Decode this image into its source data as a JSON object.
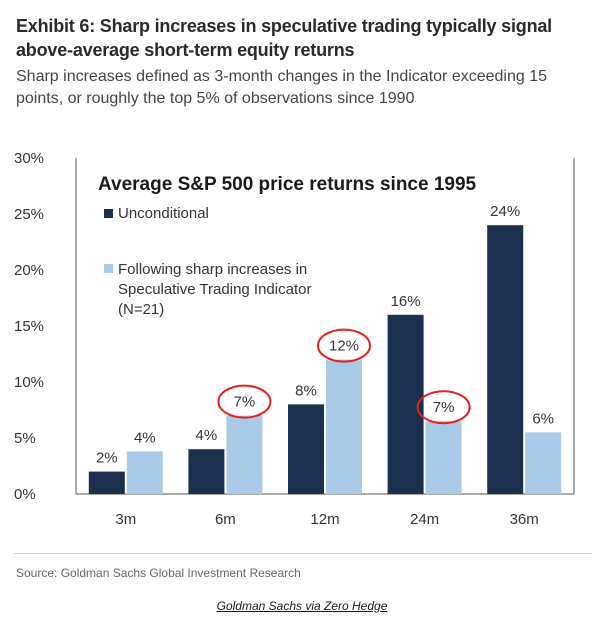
{
  "header": {
    "title": "Exhibit 6: Sharp increases in speculative trading typically signal above-average short-term equity returns",
    "subtitle": "Sharp increases defined as 3-month changes in the Indicator exceeding 15 points, or roughly the top 5% of observations since 1990"
  },
  "chart_data": {
    "type": "bar",
    "title": "Average S&P 500 price returns since 1995",
    "categories": [
      "3m",
      "6m",
      "12m",
      "24m",
      "36m"
    ],
    "series": [
      {
        "name": "Unconditional",
        "values": [
          2,
          4,
          8,
          16,
          24
        ],
        "labels": [
          "2%",
          "4%",
          "8%",
          "16%",
          "24%"
        ],
        "color": "#1b2f4e"
      },
      {
        "name": "Following sharp increases in Speculative Trading Indicator (N=21)",
        "legend_lines": [
          "Following sharp increases in",
          "Speculative Trading Indicator",
          "(N=21)"
        ],
        "values": [
          3.8,
          7,
          12,
          6.5,
          5.5
        ],
        "labels": [
          "4%",
          "7%",
          "12%",
          "7%",
          "6%"
        ],
        "color": "#a9cbe8"
      }
    ],
    "yticks": [
      0,
      5,
      10,
      15,
      20,
      25,
      30
    ],
    "ytick_labels": [
      "0%",
      "5%",
      "10%",
      "15%",
      "20%",
      "25%",
      "30%"
    ],
    "ylim": [
      0,
      30
    ],
    "circled_labels": [
      "7%",
      "12%"
    ],
    "annotation_color": "#e0241b"
  },
  "footer": {
    "source": "Source: Goldman Sachs Global Investment Research",
    "credit": "Goldman Sachs via Zero Hedge"
  }
}
